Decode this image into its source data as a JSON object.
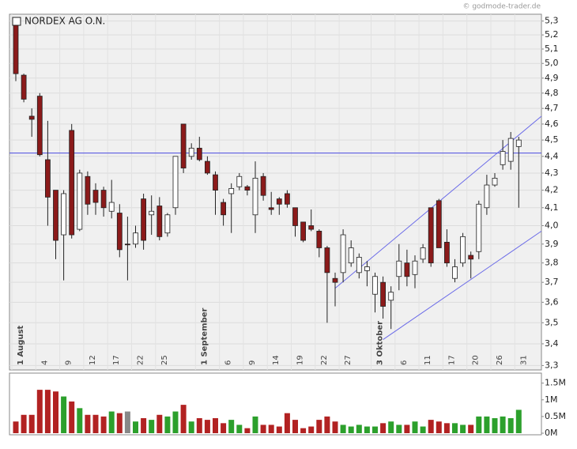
{
  "source": "© godmode-trader.de",
  "chart_data": [
    {
      "type": "candlestick",
      "title": "NORDEX AG O.N.",
      "log_scale": true,
      "grid": true,
      "up_color": "#ffffff",
      "down_color": "#8b1a1a",
      "categories": [
        "1 August",
        null,
        null,
        "4",
        null,
        null,
        "9",
        null,
        null,
        "12",
        null,
        null,
        "17",
        null,
        null,
        "22",
        null,
        null,
        "25",
        null,
        null,
        null,
        null,
        "1 September",
        null,
        null,
        "6",
        null,
        null,
        "9",
        null,
        null,
        "14",
        null,
        null,
        "19",
        null,
        null,
        "22",
        null,
        null,
        "27",
        null,
        null,
        null,
        "3 Oktober",
        null,
        null,
        "6",
        null,
        null,
        "11",
        null,
        null,
        "17",
        null,
        null,
        "20",
        null,
        null,
        "26",
        null,
        null,
        "31"
      ],
      "open": [
        5.28,
        4.92,
        4.65,
        4.78,
        4.38,
        4.2,
        3.95,
        4.56,
        3.98,
        4.28,
        4.2,
        4.2,
        4.08,
        4.07,
        3.9,
        3.9,
        4.15,
        4.06,
        4.11,
        3.96,
        4.1,
        4.6,
        4.4,
        4.45,
        4.37,
        4.29,
        4.13,
        4.18,
        4.22,
        4.22,
        4.06,
        4.28,
        4.1,
        4.15,
        4.18,
        4.1,
        4.02,
        4.0,
        3.97,
        3.88,
        3.72,
        3.75,
        3.8,
        3.75,
        3.76,
        3.64,
        3.7,
        3.61,
        3.73,
        3.8,
        3.74,
        3.82,
        4.1,
        4.14,
        3.91,
        3.72,
        3.8,
        3.84,
        3.86,
        4.1,
        4.23,
        4.35,
        4.37,
        4.46
      ],
      "high": [
        5.3,
        4.93,
        4.7,
        4.8,
        4.62,
        4.2,
        4.2,
        4.6,
        4.32,
        4.31,
        4.24,
        4.22,
        4.26,
        4.12,
        4.05,
        4.0,
        4.18,
        4.17,
        4.16,
        4.07,
        4.4,
        4.6,
        4.48,
        4.52,
        4.4,
        4.31,
        4.15,
        4.24,
        4.3,
        4.23,
        4.37,
        4.3,
        4.19,
        4.16,
        4.2,
        4.1,
        4.02,
        4.09,
        3.98,
        3.89,
        3.75,
        3.98,
        3.92,
        3.85,
        3.81,
        3.75,
        3.73,
        3.68,
        3.9,
        3.87,
        3.84,
        3.9,
        4.1,
        4.15,
        3.98,
        3.82,
        3.96,
        3.86,
        4.14,
        4.29,
        4.3,
        4.5,
        4.55,
        4.52
      ],
      "low": [
        4.88,
        4.74,
        4.52,
        4.4,
        4.0,
        3.82,
        3.71,
        3.93,
        3.97,
        4.06,
        4.06,
        4.05,
        4.04,
        3.83,
        3.71,
        3.88,
        3.87,
        3.95,
        3.92,
        3.94,
        4.06,
        4.3,
        4.38,
        4.37,
        4.29,
        4.06,
        4.0,
        3.96,
        4.2,
        4.17,
        3.96,
        4.14,
        4.06,
        4.06,
        4.1,
        3.94,
        3.91,
        3.97,
        3.83,
        3.5,
        3.58,
        3.7,
        3.78,
        3.72,
        3.68,
        3.55,
        3.52,
        3.47,
        3.66,
        3.68,
        3.67,
        3.8,
        3.78,
        3.88,
        3.78,
        3.7,
        3.78,
        3.72,
        3.82,
        4.06,
        4.22,
        4.32,
        4.32,
        4.1
      ],
      "close": [
        4.93,
        4.76,
        4.63,
        4.41,
        4.16,
        3.92,
        4.18,
        3.95,
        4.3,
        4.12,
        4.13,
        4.1,
        4.13,
        3.87,
        3.9,
        3.96,
        3.92,
        4.08,
        3.94,
        4.06,
        4.4,
        4.33,
        4.45,
        4.38,
        4.3,
        4.2,
        4.06,
        4.21,
        4.28,
        4.2,
        4.27,
        4.17,
        4.09,
        4.12,
        4.12,
        4.0,
        3.92,
        3.98,
        3.88,
        3.75,
        3.7,
        3.95,
        3.88,
        3.83,
        3.78,
        3.73,
        3.58,
        3.65,
        3.81,
        3.73,
        3.81,
        3.88,
        3.8,
        3.88,
        3.8,
        3.78,
        3.94,
        3.82,
        4.12,
        4.23,
        4.27,
        4.43,
        4.51,
        4.5
      ],
      "hline": {
        "value": 4.42,
        "color": "#4a4ae0"
      },
      "trendlines": [
        {
          "start": [
            40,
            3.67
          ],
          "end": [
            66,
            4.65
          ],
          "color": "#6a6ae8"
        },
        {
          "start": [
            46,
            3.42
          ],
          "end": [
            66,
            3.97
          ],
          "color": "#6a6ae8"
        }
      ],
      "ylim": [
        3.28,
        5.35
      ],
      "yticks": [
        {
          "value": 5.3,
          "label": "5,3"
        },
        {
          "value": 5.2,
          "label": "5,2"
        },
        {
          "value": 5.1,
          "label": "5,1"
        },
        {
          "value": 5.0,
          "label": "5,0"
        },
        {
          "value": 4.9,
          "label": "4,9"
        },
        {
          "value": 4.8,
          "label": "4,8"
        },
        {
          "value": 4.7,
          "label": "4,7"
        },
        {
          "value": 4.6,
          "label": "4,6"
        },
        {
          "value": 4.5,
          "label": "4,5"
        },
        {
          "value": 4.4,
          "label": "4,4"
        },
        {
          "value": 4.3,
          "label": "4,3"
        },
        {
          "value": 4.2,
          "label": "4,2"
        },
        {
          "value": 4.1,
          "label": "4,1"
        },
        {
          "value": 4.0,
          "label": "4,0"
        },
        {
          "value": 3.9,
          "label": "3,9"
        },
        {
          "value": 3.8,
          "label": "3,8"
        },
        {
          "value": 3.7,
          "label": "3,7"
        },
        {
          "value": 3.6,
          "label": "3,6"
        },
        {
          "value": 3.5,
          "label": "3,5"
        },
        {
          "value": 3.4,
          "label": "3,4"
        },
        {
          "value": 3.3,
          "label": "3,3"
        }
      ]
    },
    {
      "type": "bar",
      "up_color": "#2ca02c",
      "down_color": "#b22222",
      "flat_color": "#888888",
      "values": [
        350000,
        550000,
        550000,
        1300000,
        1300000,
        1250000,
        1100000,
        950000,
        750000,
        550000,
        550000,
        500000,
        650000,
        600000,
        650000,
        350000,
        450000,
        400000,
        550000,
        500000,
        650000,
        850000,
        350000,
        450000,
        400000,
        450000,
        300000,
        400000,
        250000,
        150000,
        500000,
        250000,
        250000,
        200000,
        600000,
        400000,
        150000,
        200000,
        400000,
        500000,
        350000,
        250000,
        200000,
        250000,
        200000,
        200000,
        300000,
        350000,
        250000,
        250000,
        350000,
        200000,
        400000,
        350000,
        300000,
        300000,
        250000,
        250000,
        500000,
        500000,
        450000,
        500000,
        450000,
        700000
      ],
      "ylim": [
        0,
        1800000
      ],
      "yticks": [
        {
          "value": 0,
          "label": "0M"
        },
        {
          "value": 500000,
          "label": "0.5M"
        },
        {
          "value": 1000000,
          "label": "1M"
        },
        {
          "value": 1500000,
          "label": "1.5M"
        }
      ]
    }
  ]
}
